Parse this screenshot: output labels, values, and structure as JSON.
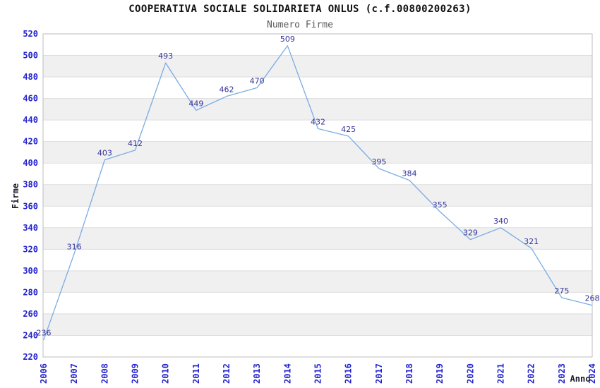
{
  "chart_data": {
    "type": "line",
    "title": "COOPERATIVA SOCIALE SOLIDARIETA ONLUS (c.f.00800200263)",
    "subtitle": "Numero Firme",
    "xlabel": "Anno",
    "ylabel": "Firme",
    "categories": [
      "2006",
      "2007",
      "2008",
      "2009",
      "2010",
      "2011",
      "2012",
      "2013",
      "2014",
      "2015",
      "2016",
      "2017",
      "2018",
      "2019",
      "2020",
      "2021",
      "2022",
      "2023",
      "2024"
    ],
    "values": [
      236,
      316,
      403,
      412,
      493,
      449,
      462,
      470,
      509,
      432,
      425,
      395,
      384,
      355,
      329,
      340,
      321,
      275,
      268
    ],
    "ylim": [
      220,
      520
    ],
    "ytick_step": 20,
    "grid": "horizontal-bands-alternating",
    "legend_position": "none",
    "point_markers": false,
    "colors": {
      "line": "#79ACE3",
      "data_label": "#333399",
      "tick_label": "#2323CE",
      "band": "#F0F0F0",
      "gridline": "#DDDDDD",
      "plot_border": "#BDBDBD",
      "title": "#111111",
      "subtitle": "#5A5A5A",
      "axis_title": "#1A1A2E",
      "background": "#FFFFFF"
    }
  }
}
